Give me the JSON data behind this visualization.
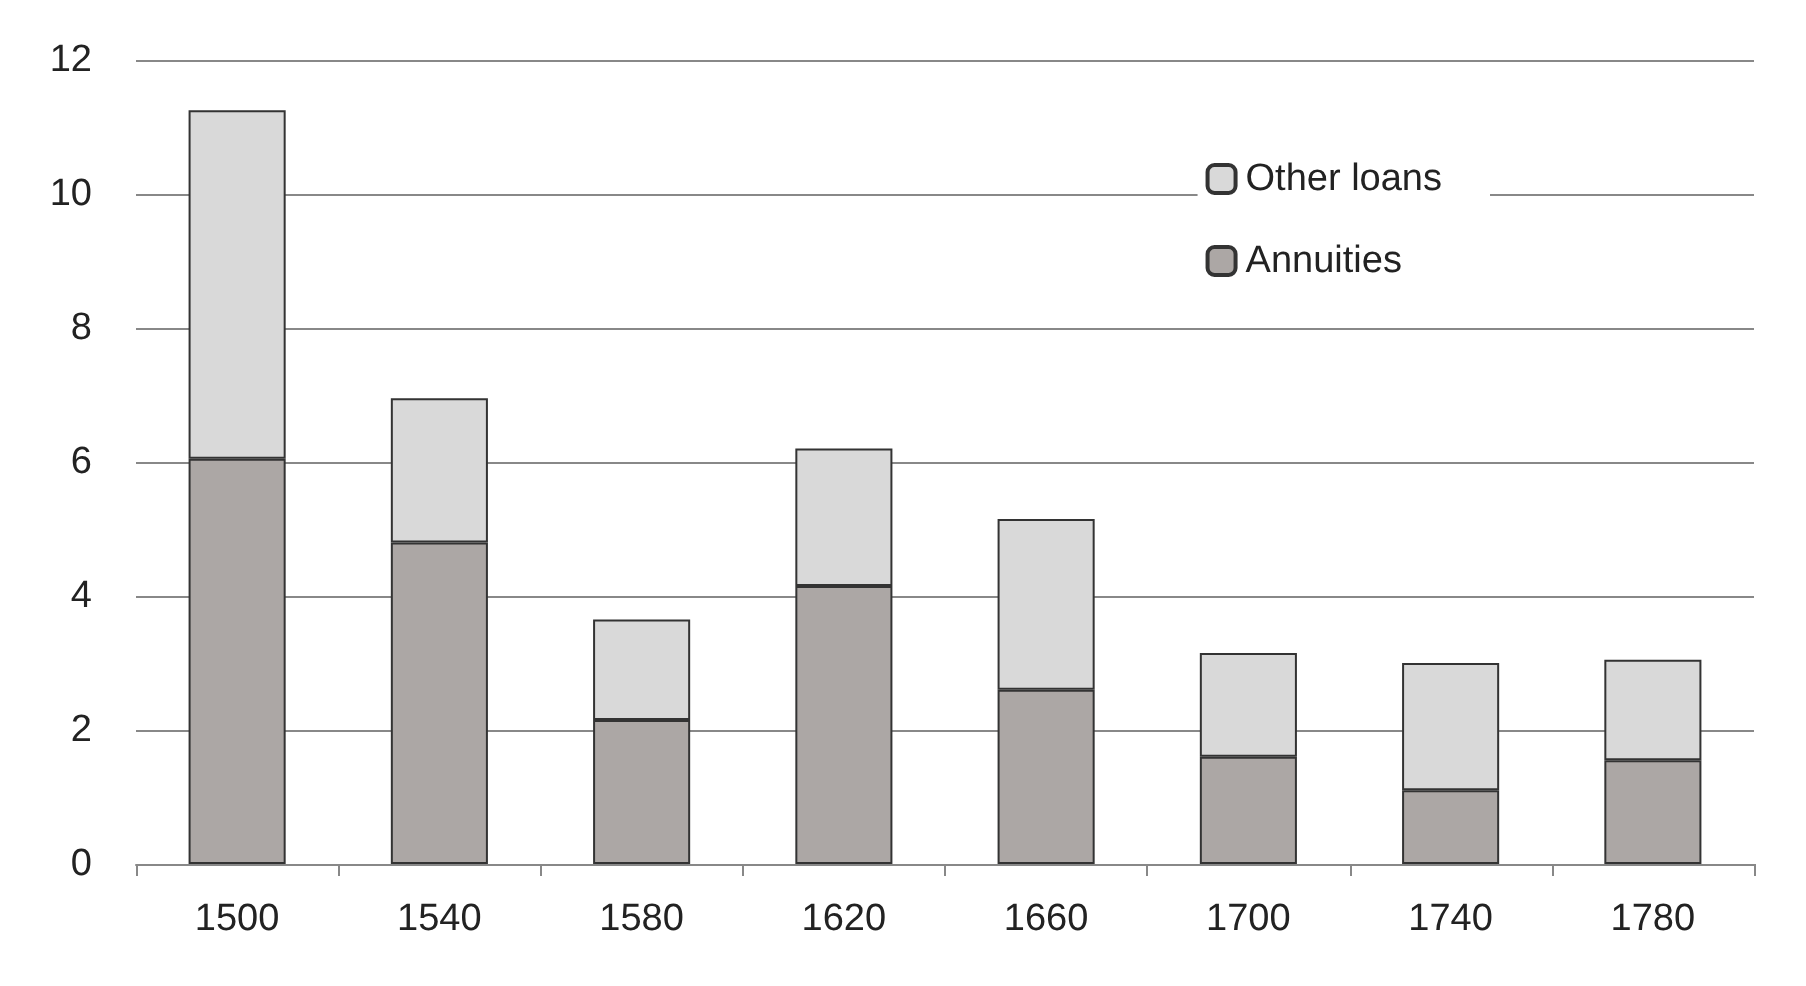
{
  "chart_data": {
    "type": "bar",
    "stacked": true,
    "categories": [
      "1500",
      "1540",
      "1580",
      "1620",
      "1660",
      "1700",
      "1740",
      "1780"
    ],
    "series": [
      {
        "name": "Annuities",
        "color": "#aca7a5",
        "values": [
          6.05,
          4.8,
          2.15,
          4.15,
          2.6,
          1.6,
          1.1,
          1.55
        ]
      },
      {
        "name": "Other loans",
        "color": "#d9d9d9",
        "values": [
          5.2,
          2.15,
          1.5,
          2.05,
          2.55,
          1.55,
          1.9,
          1.5
        ]
      }
    ],
    "ylim": [
      0,
      12
    ],
    "yticks": [
      0,
      2,
      4,
      6,
      8,
      10,
      12
    ],
    "grid": "y",
    "legend": "top right"
  }
}
